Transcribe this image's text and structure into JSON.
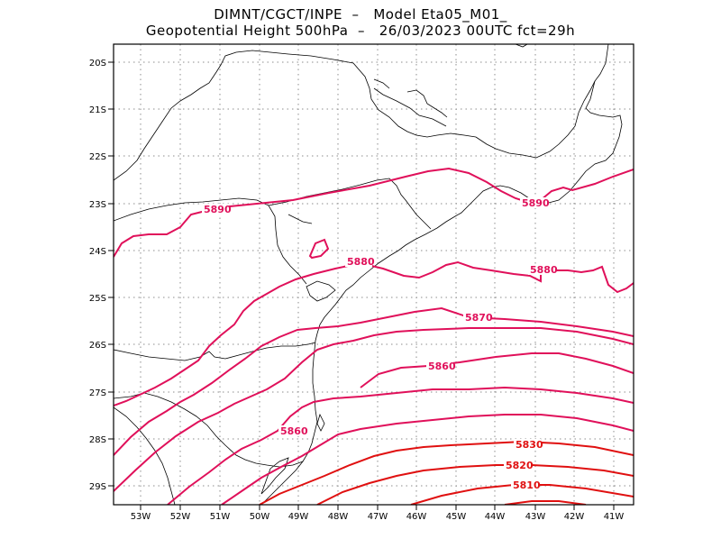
{
  "title_line1": "DIMNT/CGCT/INPE  –   Model Eta05_M01_",
  "title_line2": "Geopotential Height 500hPa  –   26/03/2023 00UTC fct=29h",
  "lat_labels": [
    "20S",
    "21S",
    "22S",
    "23S",
    "24S",
    "25S",
    "26S",
    "27S",
    "28S",
    "29S"
  ],
  "lon_labels": [
    "53W",
    "52W",
    "51W",
    "50W",
    "49W",
    "48W",
    "47W",
    "46W",
    "45W",
    "44W",
    "43W",
    "42W",
    "41W"
  ],
  "contour_labels": {
    "c5890a": "5890",
    "c5890b": "5890",
    "c5880a": "5880",
    "c5880b": "5880",
    "c5870": "5870",
    "c5860a": "5860",
    "c5860b": "5860",
    "c5830": "5830",
    "c5820": "5820",
    "c5810": "5810"
  },
  "colors": {
    "contour_high": "#e0105a",
    "contour_low": "#e01010",
    "coastline": "#000000",
    "grid": "#8c8c8c"
  }
}
